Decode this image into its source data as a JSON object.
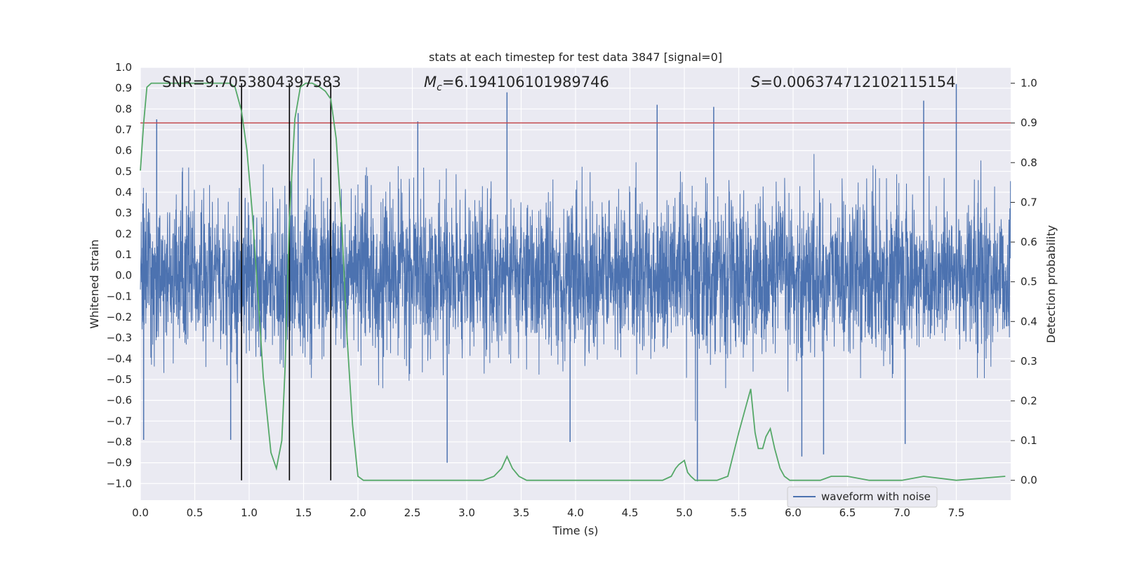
{
  "chart_data": {
    "type": "line",
    "title": "stats at each timestep for test data 3847 [signal=0]",
    "xlabel": "Time (s)",
    "ylabel": "Whitened strain",
    "y2label": "Detection probability",
    "xlim": [
      0.0,
      8.0
    ],
    "ylim": [
      -1.08,
      1.0
    ],
    "y2lim": [
      -0.05,
      1.04
    ],
    "x_ticks": [
      0.0,
      0.5,
      1.0,
      1.5,
      2.0,
      2.5,
      3.0,
      3.5,
      4.0,
      4.5,
      5.0,
      5.5,
      6.0,
      6.5,
      7.0,
      7.5
    ],
    "x_tick_labels": [
      "0.0",
      "0.5",
      "1.0",
      "1.5",
      "2.0",
      "2.5",
      "3.0",
      "3.5",
      "4.0",
      "4.5",
      "5.0",
      "5.5",
      "6.0",
      "6.5",
      "7.0",
      "7.5"
    ],
    "y_ticks": [
      1.0,
      0.9,
      0.8,
      0.7,
      0.6,
      0.5,
      0.4,
      0.3,
      0.2,
      0.1,
      0.0,
      -0.1,
      -0.2,
      -0.3,
      -0.4,
      -0.5,
      -0.6,
      -0.7,
      -0.8,
      -0.9,
      -1.0
    ],
    "y_tick_labels": [
      "1.0",
      "0.9",
      "0.8",
      "0.7",
      "0.6",
      "0.5",
      "0.4",
      "0.3",
      "0.2",
      "0.1",
      "0.0",
      "−0.1",
      "−0.2",
      "−0.3",
      "−0.4",
      "−0.5",
      "−0.6",
      "−0.7",
      "−0.8",
      "−0.9",
      "−1.0"
    ],
    "y2_ticks": [
      1.0,
      0.9,
      0.8,
      0.7,
      0.6,
      0.5,
      0.4,
      0.3,
      0.2,
      0.1,
      0.0
    ],
    "y2_tick_labels": [
      "1.0",
      "0.9",
      "0.8",
      "0.7",
      "0.6",
      "0.5",
      "0.4",
      "0.3",
      "0.2",
      "0.1",
      "0.0"
    ],
    "annotations": {
      "snr": "SNR=9.7053804397583",
      "mc_symbol": "M",
      "mc_sub": "c",
      "mc_value": "=6.194106101989746",
      "s_symbol": "S",
      "s_value": "=0.006374712102115154"
    },
    "threshold": 0.9,
    "detection_markers_x": [
      0.93,
      1.37,
      1.75
    ],
    "legend": {
      "label": "waveform with noise",
      "placement": "lower right"
    },
    "colors": {
      "waveform": "#4c72b0",
      "probability": "#55a868",
      "threshold": "#c44e52",
      "markers": "#000000",
      "axes_bg": "#eaeaf2"
    },
    "series": [
      {
        "name": "waveform with noise",
        "axis": "left",
        "typical_amplitude": 0.3,
        "peak_spikes": [
          {
            "x": 0.15,
            "y": 0.75
          },
          {
            "x": 1.45,
            "y": 0.78
          },
          {
            "x": 2.55,
            "y": 0.74
          },
          {
            "x": 3.37,
            "y": 0.88
          },
          {
            "x": 4.75,
            "y": 0.82
          },
          {
            "x": 5.27,
            "y": 0.81
          },
          {
            "x": 7.2,
            "y": 0.84
          },
          {
            "x": 7.5,
            "y": 0.92
          },
          {
            "x": 0.03,
            "y": -0.79
          },
          {
            "x": 0.83,
            "y": -0.79
          },
          {
            "x": 2.82,
            "y": -0.9
          },
          {
            "x": 3.95,
            "y": -0.8
          },
          {
            "x": 5.12,
            "y": -0.99
          },
          {
            "x": 6.08,
            "y": -0.87
          },
          {
            "x": 6.28,
            "y": -0.86
          },
          {
            "x": 7.03,
            "y": -0.81
          }
        ]
      },
      {
        "name": "detection probability",
        "axis": "right",
        "x": [
          0.0,
          0.03,
          0.06,
          0.1,
          0.15,
          0.3,
          0.5,
          0.7,
          0.82,
          0.87,
          0.93,
          0.98,
          1.03,
          1.08,
          1.13,
          1.2,
          1.25,
          1.3,
          1.33,
          1.37,
          1.42,
          1.47,
          1.52,
          1.58,
          1.65,
          1.7,
          1.75,
          1.8,
          1.85,
          1.9,
          1.95,
          2.0,
          2.05,
          2.1,
          2.3,
          2.45,
          2.6,
          2.8,
          3.0,
          3.15,
          3.25,
          3.32,
          3.37,
          3.42,
          3.48,
          3.55,
          3.8,
          4.2,
          4.5,
          4.8,
          4.88,
          4.92,
          4.95,
          5.0,
          5.03,
          5.06,
          5.1,
          5.2,
          5.3,
          5.4,
          5.5,
          5.56,
          5.61,
          5.65,
          5.68,
          5.72,
          5.75,
          5.79,
          5.83,
          5.88,
          5.92,
          5.97,
          6.1,
          6.25,
          6.35,
          6.5,
          6.7,
          7.0,
          7.2,
          7.5,
          7.95
        ],
        "values": [
          0.78,
          0.9,
          0.99,
          1.0,
          1.0,
          1.0,
          1.0,
          1.0,
          1.0,
          0.99,
          0.93,
          0.83,
          0.67,
          0.47,
          0.26,
          0.07,
          0.03,
          0.1,
          0.28,
          0.66,
          0.91,
          0.99,
          1.0,
          1.0,
          0.99,
          0.98,
          0.96,
          0.86,
          0.65,
          0.36,
          0.14,
          0.01,
          0.0,
          0.0,
          0.0,
          0.0,
          0.0,
          0.0,
          0.0,
          0.0,
          0.01,
          0.03,
          0.06,
          0.03,
          0.01,
          0.0,
          0.0,
          0.0,
          0.0,
          0.0,
          0.01,
          0.03,
          0.04,
          0.05,
          0.02,
          0.01,
          0.0,
          0.0,
          0.0,
          0.01,
          0.12,
          0.18,
          0.23,
          0.12,
          0.08,
          0.08,
          0.11,
          0.13,
          0.08,
          0.03,
          0.01,
          0.0,
          0.0,
          0.0,
          0.01,
          0.01,
          0.0,
          0.0,
          0.01,
          0.0,
          0.01
        ]
      }
    ]
  }
}
